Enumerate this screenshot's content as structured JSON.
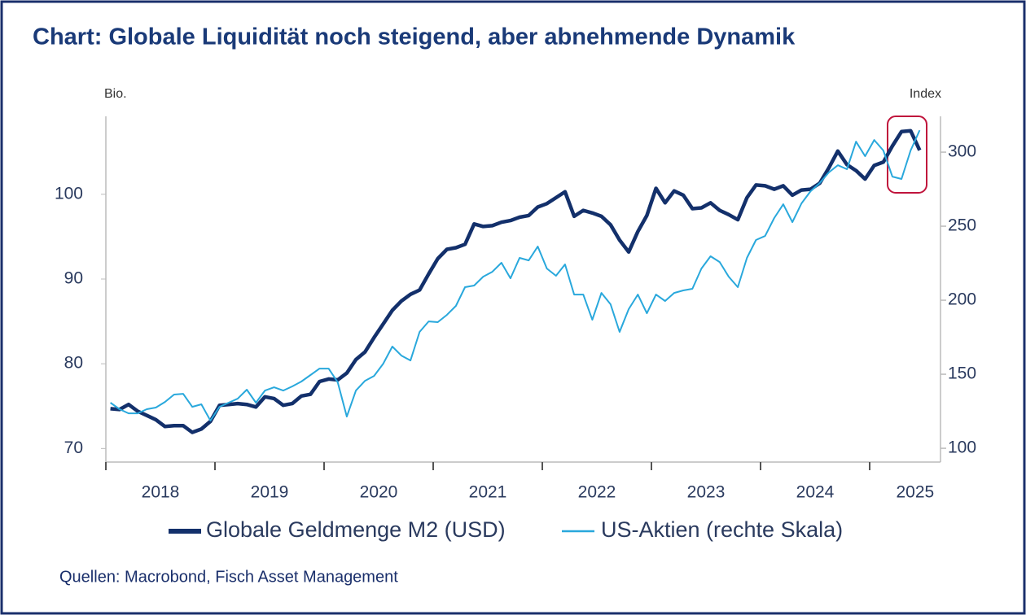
{
  "chart_data": {
    "type": "line",
    "title": "Chart: Globale Liquidität noch steigend, aber abnehmende Dynamik",
    "y_label": "Bio.",
    "y2_label": "Index",
    "source": "Quellen: Macrobond, Fisch Asset Management",
    "categories": [
      null,
      null,
      null,
      null,
      null,
      null,
      "2018",
      null,
      null,
      null,
      null,
      null,
      null,
      null,
      null,
      null,
      null,
      null,
      "2019",
      null,
      null,
      null,
      null,
      null,
      null,
      null,
      null,
      null,
      null,
      null,
      "2020",
      null,
      null,
      null,
      null,
      null,
      null,
      null,
      null,
      null,
      null,
      null,
      "2021",
      null,
      null,
      null,
      null,
      null,
      null,
      null,
      null,
      null,
      null,
      null,
      "2022",
      null,
      null,
      null,
      null,
      null,
      null,
      null,
      null,
      null,
      null,
      null,
      "2023",
      null,
      null,
      null,
      null,
      null,
      null,
      null,
      null,
      null,
      null,
      null,
      "2024",
      null,
      null,
      null,
      null,
      null,
      null,
      null,
      null,
      null,
      null,
      "2025"
    ],
    "series": [
      {
        "name": "Globale Geldmenge M2 (USD)",
        "color": "#13306b",
        "values": [
          74.7,
          74.6,
          75.2,
          74.4,
          73.9,
          73.4,
          72.6,
          72.7,
          72.7,
          71.9,
          72.3,
          73.2,
          75.1,
          75.2,
          75.3,
          75.2,
          74.9,
          76.1,
          75.9,
          75.1,
          75.3,
          76.2,
          76.4,
          77.9,
          78.2,
          78.1,
          78.9,
          80.5,
          81.4,
          83.1,
          84.7,
          86.3,
          87.4,
          88.2,
          88.7,
          90.6,
          92.4,
          93.5,
          93.7,
          94.1,
          96.5,
          96.2,
          96.3,
          96.7,
          96.9,
          97.3,
          97.5,
          98.5,
          98.9,
          99.6,
          100.3,
          97.4,
          98.1,
          97.8,
          97.4,
          96.4,
          94.6,
          93.2,
          95.6,
          97.5,
          100.7,
          99.0,
          100.4,
          99.9,
          98.3,
          98.4,
          99.0,
          98.1,
          97.6,
          97.0,
          99.6,
          101.1,
          101.0,
          100.6,
          101.0,
          99.9,
          100.5,
          100.6,
          101.3,
          103.1,
          105.1,
          103.5,
          102.8,
          101.8,
          103.4,
          103.8,
          105.7,
          107.4,
          107.5,
          105.2
        ]
      },
      {
        "name": "US-Aktien (rechte Skala)",
        "color": "#29a8dc",
        "axis": "y2",
        "values": [
          130.8,
          126.4,
          123.6,
          123.6,
          126.4,
          127.5,
          131.3,
          136.3,
          136.8,
          128.0,
          129.7,
          118.7,
          128.0,
          130.8,
          133.5,
          139.6,
          130.8,
          139.0,
          141.2,
          139.0,
          141.8,
          145.1,
          149.5,
          153.8,
          153.8,
          144.5,
          121.4,
          139.0,
          145.6,
          148.9,
          157.1,
          168.7,
          162.6,
          159.3,
          178.6,
          185.7,
          185.2,
          190.1,
          196.2,
          208.8,
          209.9,
          215.9,
          219.2,
          225.3,
          214.8,
          228.6,
          226.9,
          236.3,
          221.4,
          216.5,
          224.2,
          203.8,
          203.8,
          186.8,
          204.9,
          197.3,
          178.6,
          194.0,
          203.8,
          191.2,
          203.8,
          199.5,
          204.9,
          206.6,
          207.7,
          221.4,
          229.7,
          225.8,
          215.9,
          208.8,
          228.6,
          240.7,
          243.4,
          255.5,
          264.8,
          252.7,
          265.4,
          273.6,
          279.1,
          286.3,
          291.2,
          288.5,
          307.1,
          297.3,
          308.2,
          301.1,
          283.5,
          281.9,
          301.1,
          314.8
        ]
      }
    ],
    "ylim": [
      68.4,
      109.2
    ],
    "yticks": [
      70,
      80,
      90,
      100
    ],
    "y2lim": [
      90.7,
      324.2
    ],
    "y2ticks": [
      100,
      150,
      200,
      250,
      300
    ],
    "grid": false,
    "legend": "bottom"
  }
}
